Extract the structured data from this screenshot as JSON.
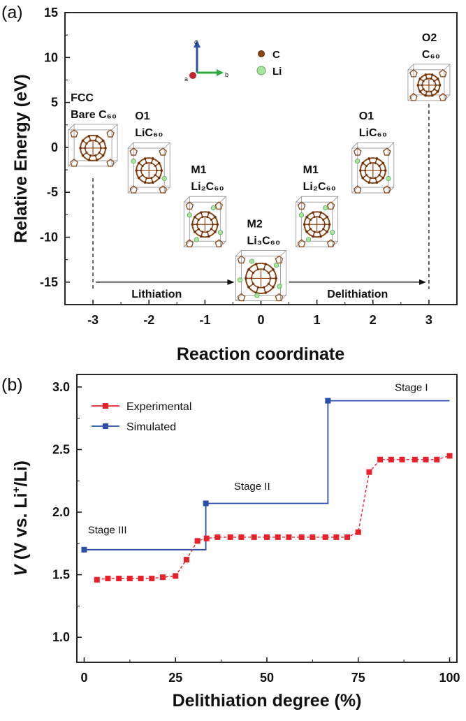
{
  "chart_data": [
    {
      "type": "scatter",
      "panel": "(a)",
      "xlabel": "Reaction coordinate",
      "ylabel": "Relative Energy (eV)",
      "xlim": [
        -3.5,
        3.5
      ],
      "ylim": [
        -17.5,
        15
      ],
      "xticks": [
        "-3",
        "-2",
        "-1",
        "0",
        "1",
        "2",
        "3"
      ],
      "yticks": [
        "-15",
        "-10",
        "-5",
        "0",
        "5",
        "10",
        "15"
      ],
      "arrows": [
        {
          "label": "Lithiation",
          "from": -3,
          "to": -0.5,
          "y": -15
        },
        {
          "label": "Delithiation",
          "from": 0.5,
          "to": 3,
          "y": -15
        }
      ],
      "structures": [
        {
          "x": -3,
          "y": 0,
          "lines": [
            "FCC",
            "Bare C₆₀"
          ]
        },
        {
          "x": -2,
          "y": -2.5,
          "lines": [
            "O1",
            "LiC₆₀"
          ]
        },
        {
          "x": -1,
          "y": -8.5,
          "lines": [
            "M1",
            "Li₂C₆₀"
          ]
        },
        {
          "x": 0,
          "y": -14.5,
          "lines": [
            "M2",
            "Li₃C₆₀"
          ]
        },
        {
          "x": 1,
          "y": -8.5,
          "lines": [
            "M1",
            "Li₂C₆₀"
          ]
        },
        {
          "x": 2,
          "y": -2.5,
          "lines": [
            "O1",
            "LiC₆₀"
          ]
        },
        {
          "x": 3,
          "y": 7,
          "lines": [
            "O2",
            "C₆₀"
          ]
        }
      ],
      "atom_legend": [
        {
          "label": "C",
          "color": "#8b4513"
        },
        {
          "label": "Li",
          "color": "#7fd07f"
        }
      ],
      "axis_labels": {
        "a": "a",
        "b": "b",
        "c": "c"
      }
    },
    {
      "type": "line",
      "panel": "(b)",
      "xlabel": "Delithiation degree (%)",
      "ylabel": "V (V vs. Li⁺/Li)",
      "xlim": [
        -2,
        102
      ],
      "ylim": [
        0.8,
        3.1
      ],
      "xticks": [
        "0",
        "25",
        "50",
        "75",
        "100"
      ],
      "yticks": [
        "1.0",
        "1.5",
        "2.0",
        "2.5",
        "3.0"
      ],
      "series": [
        {
          "name": "Experimental",
          "color": "#e8202a",
          "x": [
            3.5,
            6.5,
            9.5,
            12.5,
            15.5,
            18.5,
            21.5,
            25,
            28,
            31,
            33.5,
            36.5,
            40,
            43,
            46.5,
            50,
            53,
            56,
            59.5,
            62.5,
            66,
            69,
            72,
            75,
            78,
            81,
            84,
            87,
            90.5,
            93.5,
            96.5,
            100
          ],
          "y": [
            1.46,
            1.47,
            1.47,
            1.47,
            1.47,
            1.47,
            1.48,
            1.49,
            1.62,
            1.77,
            1.79,
            1.8,
            1.8,
            1.8,
            1.8,
            1.8,
            1.8,
            1.8,
            1.8,
            1.8,
            1.8,
            1.8,
            1.8,
            1.84,
            2.32,
            2.42,
            2.42,
            2.42,
            2.42,
            2.42,
            2.42,
            2.45
          ]
        },
        {
          "name": "Simulated",
          "color": "#2a4fa8",
          "step": true,
          "x": [
            0,
            33.3,
            33.3,
            66.7,
            66.7,
            100
          ],
          "y": [
            1.7,
            1.7,
            2.07,
            2.07,
            2.89,
            2.89
          ],
          "markers_x": [
            0,
            33.3,
            66.7
          ],
          "markers_y": [
            1.7,
            2.07,
            2.89
          ]
        }
      ],
      "annotations": [
        {
          "text": "Stage III",
          "x": 1,
          "y": 1.83
        },
        {
          "text": "Stage II",
          "x": 41,
          "y": 2.18
        },
        {
          "text": "Stage I",
          "x": 85,
          "y": 2.97
        }
      ],
      "legend_position": "top-left"
    }
  ]
}
